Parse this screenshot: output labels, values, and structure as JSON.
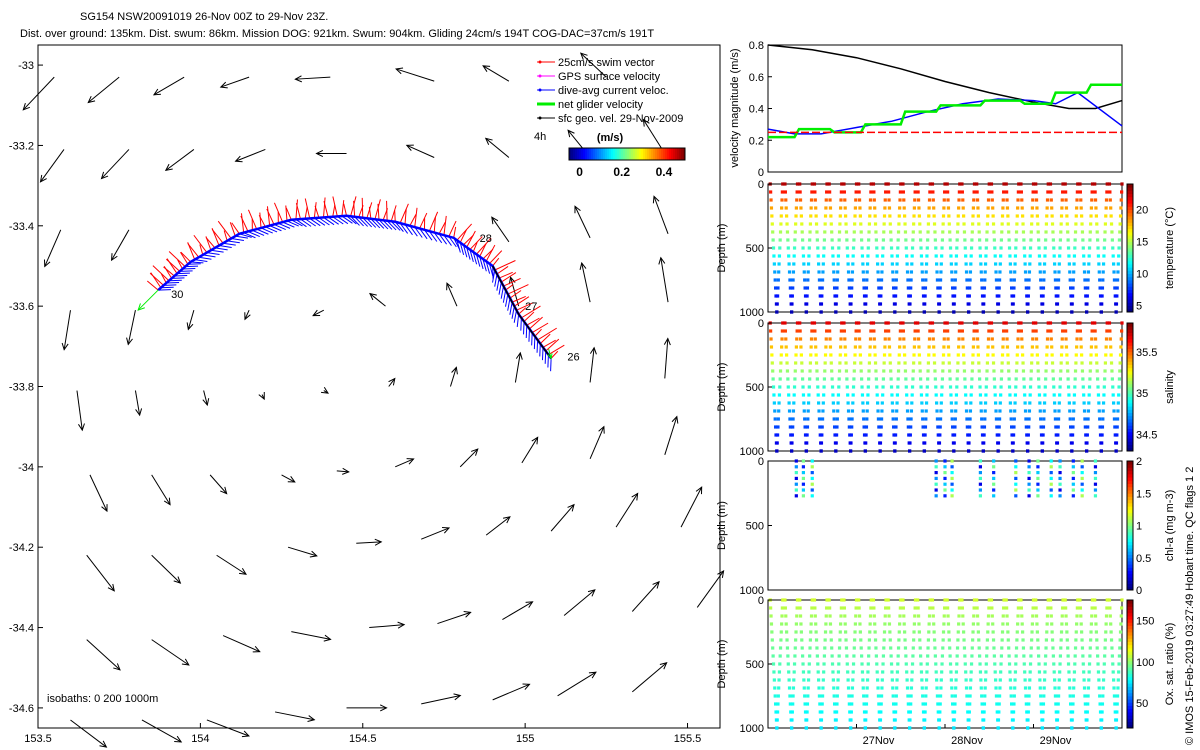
{
  "header": {
    "line1": "SG154 NSW20091019 26-Nov 00Z to 29-Nov 23Z.",
    "line2": "Dist. over ground: 135km. Dist. swum: 86km. Mission DOG: 921km. Swum: 904km. Gliding 24cm/s 194T COG-DAC=37cm/s 191T"
  },
  "side_label": "© IMOS 15-Feb-2019 03:27:49 Hobart time. QC flags 1  2",
  "colors": {
    "swim": "#ff0000",
    "gps": "#ff00ff",
    "dac": "#0000ff",
    "net": "#00ee00",
    "sfc": "#000000"
  },
  "chart_data": [
    {
      "id": "map",
      "type": "scatter",
      "xlim": [
        153.5,
        155.6
      ],
      "ylim": [
        -34.65,
        -32.95
      ],
      "xticks": [
        "153.5",
        "154",
        "154.5",
        "155",
        "155.5"
      ],
      "yticks": [
        "-33",
        "-33.2",
        "-33.4",
        "-33.6",
        "-33.8",
        "-34",
        "-34.2",
        "-34.4",
        "-34.6"
      ],
      "xtick_values": [
        153.5,
        154,
        154.5,
        155,
        155.5
      ],
      "ytick_values": [
        -33,
        -33.2,
        -33.4,
        -33.6,
        -33.8,
        -34,
        -34.2,
        -34.4,
        -34.6
      ],
      "legend": [
        {
          "label": "25cm/s swim vector",
          "color": "#ff0000"
        },
        {
          "label": "GPS surface velocity",
          "color": "#ff00ff"
        },
        {
          "label": "dive-avg current veloc.",
          "color": "#0000ff"
        },
        {
          "label": "net glider velocity",
          "color": "#00ee00"
        },
        {
          "label": "sfc geo. vel. 29-Nov-2009",
          "color": "#000000"
        }
      ],
      "legend_extra": "4h",
      "colorbar": {
        "title": "(m/s)",
        "ticks": [
          "0",
          "0.2",
          "0.4"
        ],
        "tick_values": [
          0,
          0.2,
          0.4
        ],
        "range": [
          -0.05,
          0.5
        ]
      },
      "isobaths_label": "isobaths: 0   200   1000m",
      "track": [
        [
          155.08,
          -33.73
        ],
        [
          154.98,
          -33.62
        ],
        [
          154.9,
          -33.5
        ],
        [
          154.78,
          -33.43
        ],
        [
          154.6,
          -33.39
        ],
        [
          154.45,
          -33.375
        ],
        [
          154.28,
          -33.385
        ],
        [
          154.12,
          -33.42
        ],
        [
          153.97,
          -33.49
        ],
        [
          153.87,
          -33.56
        ]
      ],
      "track_labels": [
        {
          "text": "26",
          "lon": 155.13,
          "lat": -33.735
        },
        {
          "text": "27",
          "lon": 155.0,
          "lat": -33.61
        },
        {
          "text": "28",
          "lon": 154.86,
          "lat": -33.44
        },
        {
          "text": "30",
          "lon": 153.91,
          "lat": -33.58
        }
      ],
      "current_vectors": [
        [
          153.55,
          -33.03,
          0.45
        ],
        [
          153.75,
          -33.03,
          0.4
        ],
        [
          153.95,
          -33.03,
          0.35
        ],
        [
          154.15,
          -33.03,
          0.3
        ],
        [
          154.4,
          -33.03,
          0.35
        ],
        [
          154.72,
          -33.04,
          0.4
        ],
        [
          154.95,
          -33.04,
          0.3
        ],
        [
          155.25,
          -33.03,
          0.35
        ],
        [
          153.58,
          -33.21,
          0.4
        ],
        [
          153.78,
          -33.21,
          0.4
        ],
        [
          153.98,
          -33.21,
          0.35
        ],
        [
          154.2,
          -33.21,
          0.32
        ],
        [
          154.45,
          -33.22,
          0.3
        ],
        [
          154.72,
          -33.23,
          0.3
        ],
        [
          154.95,
          -33.23,
          0.3
        ],
        [
          155.2,
          -33.23,
          0.35
        ],
        [
          155.43,
          -33.22,
          0.4
        ],
        [
          153.57,
          -33.41,
          0.4
        ],
        [
          153.78,
          -33.41,
          0.35
        ],
        [
          154.95,
          -33.44,
          0.3
        ],
        [
          155.2,
          -33.43,
          0.35
        ],
        [
          155.44,
          -33.42,
          0.4
        ],
        [
          153.6,
          -33.61,
          0.4
        ],
        [
          153.8,
          -33.61,
          0.35
        ],
        [
          153.98,
          -33.61,
          0.2
        ],
        [
          154.15,
          -33.61,
          0.1
        ],
        [
          154.38,
          -33.61,
          0.12
        ],
        [
          154.57,
          -33.6,
          0.2
        ],
        [
          154.79,
          -33.6,
          0.25
        ],
        [
          154.98,
          -33.6,
          0.3
        ],
        [
          155.2,
          -33.59,
          0.4
        ],
        [
          155.44,
          -33.59,
          0.45
        ],
        [
          153.62,
          -33.81,
          0.4
        ],
        [
          153.8,
          -33.81,
          0.25
        ],
        [
          154.01,
          -33.81,
          0.15
        ],
        [
          154.19,
          -33.82,
          0.05
        ],
        [
          154.38,
          -33.81,
          0.05
        ],
        [
          154.58,
          -33.8,
          0.1
        ],
        [
          154.77,
          -33.8,
          0.2
        ],
        [
          154.97,
          -33.79,
          0.3
        ],
        [
          155.2,
          -33.79,
          0.35
        ],
        [
          155.43,
          -33.78,
          0.4
        ],
        [
          153.66,
          -34.02,
          0.4
        ],
        [
          153.85,
          -34.02,
          0.35
        ],
        [
          154.03,
          -34.02,
          0.25
        ],
        [
          154.25,
          -34.02,
          0.15
        ],
        [
          154.42,
          -34.01,
          0.12
        ],
        [
          154.6,
          -34.0,
          0.2
        ],
        [
          154.8,
          -34.0,
          0.25
        ],
        [
          154.99,
          -33.99,
          0.3
        ],
        [
          155.2,
          -33.98,
          0.35
        ],
        [
          155.43,
          -33.97,
          0.4
        ],
        [
          153.65,
          -34.22,
          0.45
        ],
        [
          153.85,
          -34.22,
          0.4
        ],
        [
          154.05,
          -34.22,
          0.35
        ],
        [
          154.27,
          -34.2,
          0.3
        ],
        [
          154.48,
          -34.19,
          0.25
        ],
        [
          154.68,
          -34.18,
          0.3
        ],
        [
          154.88,
          -34.17,
          0.3
        ],
        [
          155.08,
          -34.16,
          0.35
        ],
        [
          155.28,
          -34.15,
          0.4
        ],
        [
          155.48,
          -34.15,
          0.45
        ],
        [
          153.65,
          -34.43,
          0.45
        ],
        [
          153.85,
          -34.43,
          0.45
        ],
        [
          154.07,
          -34.42,
          0.4
        ],
        [
          154.28,
          -34.41,
          0.4
        ],
        [
          154.52,
          -34.4,
          0.35
        ],
        [
          154.73,
          -34.39,
          0.35
        ],
        [
          154.93,
          -34.38,
          0.35
        ],
        [
          155.12,
          -34.37,
          0.4
        ],
        [
          155.33,
          -34.36,
          0.4
        ],
        [
          155.53,
          -34.35,
          0.45
        ],
        [
          153.6,
          -34.63,
          0.45
        ],
        [
          153.82,
          -34.63,
          0.45
        ],
        [
          154.02,
          -34.63,
          0.45
        ],
        [
          154.23,
          -34.61,
          0.4
        ],
        [
          154.45,
          -34.6,
          0.4
        ],
        [
          154.68,
          -34.59,
          0.4
        ],
        [
          154.9,
          -34.58,
          0.4
        ],
        [
          155.1,
          -34.57,
          0.45
        ],
        [
          155.33,
          -34.56,
          0.45
        ]
      ]
    },
    {
      "id": "velocity",
      "type": "line",
      "ylabel": "velocity magnitude (m/s)",
      "ylim": [
        0,
        0.8
      ],
      "yticks": [
        "0",
        "0.2",
        "0.4",
        "0.6",
        "0.8"
      ],
      "ytick_values": [
        0,
        0.2,
        0.4,
        0.6,
        0.8
      ],
      "xlim": [
        26.0,
        30.0
      ],
      "series": [
        {
          "color": "#000000",
          "x": [
            26.0,
            26.5,
            27.0,
            27.5,
            28.0,
            28.5,
            29.0,
            29.4,
            29.7,
            30.0
          ],
          "y": [
            0.8,
            0.77,
            0.72,
            0.65,
            0.57,
            0.5,
            0.44,
            0.4,
            0.4,
            0.45
          ]
        },
        {
          "color": "#0000ff",
          "x": [
            26.0,
            26.3,
            26.6,
            27.0,
            27.4,
            27.8,
            28.2,
            28.6,
            29.0,
            29.25,
            29.5,
            30.0
          ],
          "y": [
            0.27,
            0.24,
            0.24,
            0.28,
            0.32,
            0.38,
            0.43,
            0.46,
            0.45,
            0.43,
            0.5,
            0.29
          ]
        },
        {
          "color": "#00ee00",
          "x": [
            26.0,
            26.3,
            26.35,
            26.7,
            26.75,
            27.05,
            27.1,
            27.5,
            27.55,
            27.9,
            27.95,
            28.4,
            28.45,
            28.85,
            28.9,
            29.2,
            29.25,
            29.6,
            29.65,
            30.0
          ],
          "y": [
            0.22,
            0.22,
            0.27,
            0.27,
            0.25,
            0.25,
            0.3,
            0.3,
            0.38,
            0.38,
            0.42,
            0.42,
            0.45,
            0.45,
            0.43,
            0.43,
            0.5,
            0.5,
            0.55,
            0.55
          ]
        },
        {
          "color": "#ff0000",
          "x": [
            26.0,
            30.0
          ],
          "y": [
            0.25,
            0.25
          ]
        }
      ]
    },
    {
      "id": "temperature",
      "type": "scatter",
      "ylabel": "Depth (m)",
      "clabel": "temperature (°C)",
      "ylim": [
        1000,
        0
      ],
      "yticks": [
        "0",
        "500",
        "1000"
      ],
      "ytick_values": [
        0,
        500,
        1000
      ],
      "xlim": [
        26.0,
        30.0
      ],
      "profiles": 24,
      "colorbar": {
        "ticks": [
          "5",
          "10",
          "15",
          "20"
        ],
        "tick_values": [
          5,
          10,
          15,
          20
        ],
        "range": [
          4,
          24
        ],
        "surface": 23,
        "bottom": 5
      }
    },
    {
      "id": "salinity",
      "type": "scatter",
      "ylabel": "Depth (m)",
      "clabel": "salinity",
      "ylim": [
        1000,
        0
      ],
      "yticks": [
        "0",
        "500",
        "1000"
      ],
      "ytick_values": [
        0,
        500,
        1000
      ],
      "xlim": [
        26.0,
        30.0
      ],
      "profiles": 24,
      "colorbar": {
        "ticks": [
          "34.5",
          "35",
          "35.5"
        ],
        "tick_values": [
          34.5,
          35,
          35.5
        ],
        "range": [
          34.3,
          35.85
        ],
        "surface": 35.7,
        "bottom": 34.4
      }
    },
    {
      "id": "chla",
      "type": "scatter",
      "ylabel": "Depth (m)",
      "clabel": "chl-a (mg m-3)",
      "ylim": [
        1000,
        0
      ],
      "yticks": [
        "0",
        "500",
        "1000"
      ],
      "ytick_values": [
        0,
        500,
        1000
      ],
      "xlim": [
        26.0,
        30.0
      ],
      "sample_x": [
        26.32,
        26.4,
        26.5,
        27.9,
        28.0,
        28.08,
        28.4,
        28.55,
        28.8,
        28.95,
        29.05,
        29.2,
        29.3,
        29.45,
        29.55,
        29.7
      ],
      "max_depth": 270,
      "colorbar": {
        "ticks": [
          "0",
          "0.5",
          "1",
          "1.5",
          "2"
        ],
        "tick_values": [
          0,
          0.5,
          1,
          1.5,
          2
        ],
        "range": [
          0,
          2
        ]
      }
    },
    {
      "id": "oxygen",
      "type": "scatter",
      "ylabel": "Depth (m)",
      "clabel": "Ox. sat. ratio (%)",
      "ylim": [
        1000,
        0
      ],
      "yticks": [
        "0",
        "500",
        "1000"
      ],
      "ytick_values": [
        0,
        500,
        1000
      ],
      "xlim": [
        26.0,
        30.0
      ],
      "xticks": [
        "27Nov",
        "28Nov",
        "29Nov"
      ],
      "xtick_values": [
        27,
        28,
        29
      ],
      "profiles": 24,
      "colorbar": {
        "ticks": [
          "50",
          "100",
          "150"
        ],
        "tick_values": [
          50,
          100,
          150
        ],
        "range": [
          20,
          175
        ],
        "surface": 110,
        "bottom": 75
      }
    }
  ]
}
